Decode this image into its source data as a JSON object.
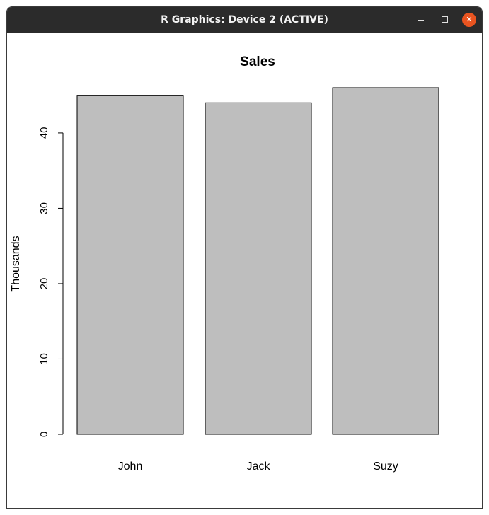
{
  "window": {
    "title": "R Graphics: Device 2 (ACTIVE)",
    "close_glyph": "✕",
    "icons": [
      "minimize-icon",
      "maximize-icon",
      "close-icon"
    ],
    "close_color": "#e95420"
  },
  "chart_data": {
    "type": "bar",
    "title": "Sales",
    "xlabel": "",
    "ylabel": "Thousands",
    "categories": [
      "John",
      "Jack",
      "Suzy"
    ],
    "values": [
      45,
      44,
      46
    ],
    "ylim": [
      0,
      46
    ],
    "yticks": [
      0,
      10,
      20,
      30,
      40
    ],
    "bar_color": "#bebebe",
    "grid": false,
    "legend": "none"
  }
}
